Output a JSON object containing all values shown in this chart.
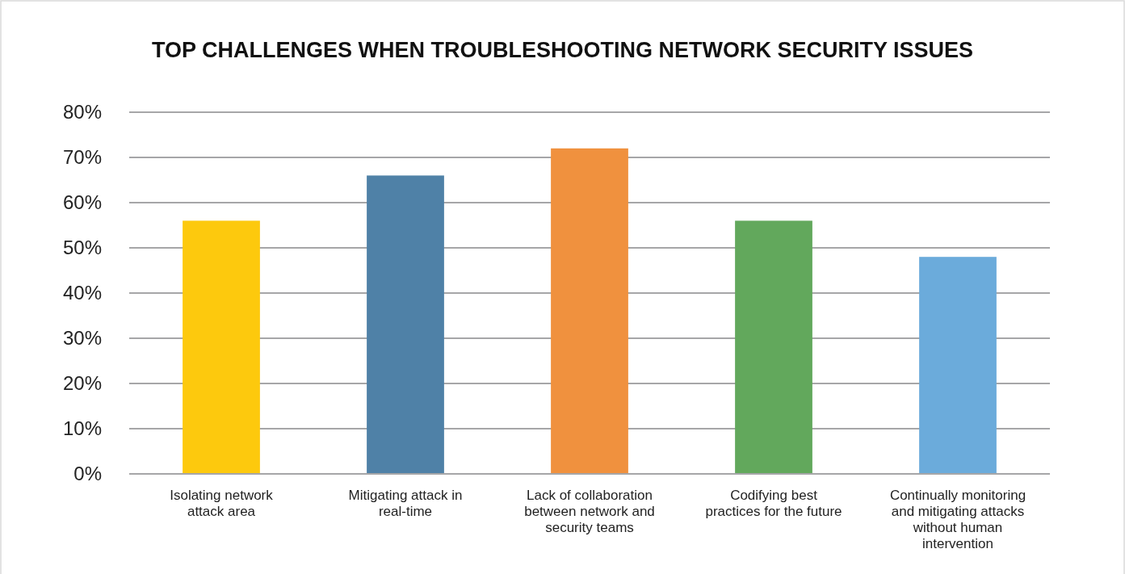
{
  "chart_data": {
    "type": "bar",
    "title": "TOP CHALLENGES WHEN TROUBLESHOOTING NETWORK SECURITY ISSUES",
    "categories": [
      "Isolating network attack area",
      "Mitigating attack in real-time",
      "Lack of collaboration between network and security teams",
      "Codifying best practices for the future",
      "Continually monitoring and mitigating attacks without human intervention"
    ],
    "values": [
      56,
      66,
      72,
      56,
      48
    ],
    "colors": [
      "#fdc90d",
      "#4f81a7",
      "#f0913e",
      "#62a85c",
      "#6babdb"
    ],
    "ylim": [
      0,
      80
    ],
    "yticks": [
      {
        "value": 0,
        "label": "0%"
      },
      {
        "value": 10,
        "label": "10%"
      },
      {
        "value": 20,
        "label": "20%"
      },
      {
        "value": 30,
        "label": "30%"
      },
      {
        "value": 40,
        "label": "40%"
      },
      {
        "value": 50,
        "label": "50%"
      },
      {
        "value": 60,
        "label": "60%"
      },
      {
        "value": 70,
        "label": "70%"
      },
      {
        "value": 80,
        "label": "80%"
      }
    ],
    "grid": "y"
  }
}
